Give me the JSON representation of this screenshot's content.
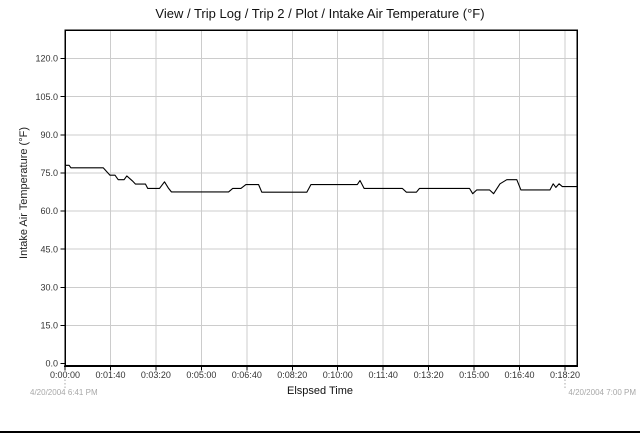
{
  "header": {
    "title": "View / Trip Log / Trip 2 / Plot / Intake Air Temperature (°F)"
  },
  "footer": {
    "start_timestamp": "4/20/2004 6:41 PM",
    "end_timestamp": "4/20/2004 7:00 PM"
  },
  "chart_data": {
    "type": "line",
    "title": "View / Trip Log / Trip 2 / Plot / Intake Air Temperature (°F)",
    "xlabel": "Elspsed Time",
    "ylabel": "Intake Air Temperature (°F)",
    "grid": true,
    "legend": "none",
    "ylim": [
      0,
      131
    ],
    "ytick_step": 15,
    "y_tick_labels": [
      "0.0",
      "15.0",
      "30.0",
      "45.0",
      "60.0",
      "75.0",
      "90.0",
      "105.0",
      "120.0"
    ],
    "xlim_seconds": [
      0,
      1126
    ],
    "xtick_step_seconds": 100,
    "x_tick_labels": [
      "0:00:00",
      "0:01:40",
      "0:03:20",
      "0:05:00",
      "0:06:40",
      "0:08:20",
      "0:10:00",
      "0:11:40",
      "0:13:20",
      "0:15:00",
      "0:16:40",
      "0:18:20"
    ],
    "line_color": "#000000",
    "grid_color": "#cccccc",
    "timestamp_color": "#a8a8a8",
    "series": [
      {
        "name": "Intake Air Temperature (°F)",
        "points_time_s_temp_f": [
          [
            0,
            78.0
          ],
          [
            9,
            78.0
          ],
          [
            13,
            77.0
          ],
          [
            84,
            77.0
          ],
          [
            99,
            74.1
          ],
          [
            110,
            74.1
          ],
          [
            117,
            72.3
          ],
          [
            130,
            72.3
          ],
          [
            136,
            73.8
          ],
          [
            148,
            71.9
          ],
          [
            155,
            70.6
          ],
          [
            177,
            70.6
          ],
          [
            182,
            68.9
          ],
          [
            208,
            68.9
          ],
          [
            219,
            71.5
          ],
          [
            228,
            68.9
          ],
          [
            234,
            67.5
          ],
          [
            360,
            67.5
          ],
          [
            369,
            68.9
          ],
          [
            387,
            68.9
          ],
          [
            398,
            70.4
          ],
          [
            426,
            70.4
          ],
          [
            433,
            67.4
          ],
          [
            532,
            67.4
          ],
          [
            541,
            70.4
          ],
          [
            643,
            70.4
          ],
          [
            649,
            72.0
          ],
          [
            658,
            68.9
          ],
          [
            742,
            68.9
          ],
          [
            751,
            67.4
          ],
          [
            773,
            67.4
          ],
          [
            780,
            68.9
          ],
          [
            890,
            68.9
          ],
          [
            897,
            66.8
          ],
          [
            906,
            68.3
          ],
          [
            934,
            68.3
          ],
          [
            943,
            66.8
          ],
          [
            957,
            70.7
          ],
          [
            972,
            72.3
          ],
          [
            994,
            72.3
          ],
          [
            1003,
            68.3
          ],
          [
            1067,
            68.3
          ],
          [
            1074,
            70.7
          ],
          [
            1080,
            69.3
          ],
          [
            1087,
            70.7
          ],
          [
            1094,
            69.6
          ],
          [
            1126,
            69.6
          ]
        ]
      }
    ]
  }
}
